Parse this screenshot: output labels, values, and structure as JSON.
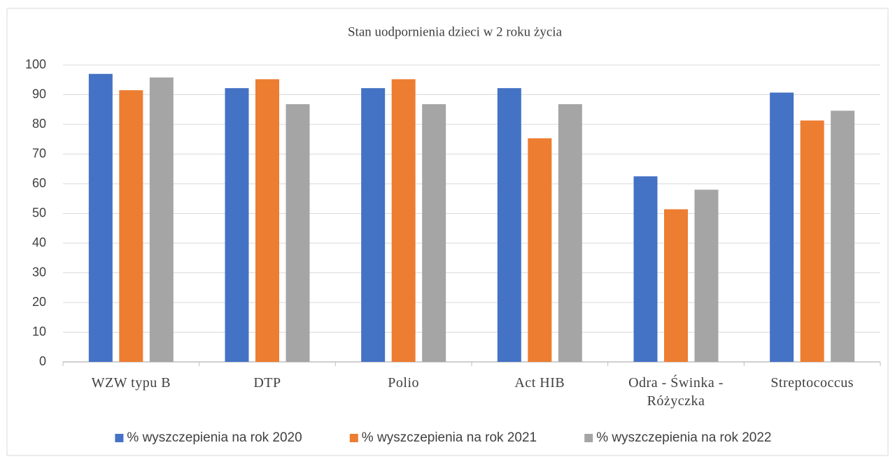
{
  "chart_data": {
    "type": "bar",
    "title": "Stan uodpornienia dzieci w 2 roku życia",
    "categories": [
      "WZW typu B",
      "DTP",
      "Polio",
      "Act HIB",
      "Odra - Świnka - Różyczka",
      "Streptococcus"
    ],
    "series": [
      {
        "name": "% wyszczepienia na rok 2020",
        "color": "#4472c4",
        "values": [
          97,
          92.2,
          92.2,
          92.2,
          62.5,
          90.7
        ]
      },
      {
        "name": "% wyszczepienia na rok 2021",
        "color": "#ed7d31",
        "values": [
          91.5,
          95.2,
          95.2,
          75.3,
          51.4,
          81.3
        ]
      },
      {
        "name": "% wyszczepienia na rok 2022",
        "color": "#a5a5a5",
        "values": [
          95.8,
          86.8,
          86.8,
          86.8,
          58,
          84.6
        ]
      }
    ],
    "ylim": [
      0,
      100
    ],
    "yticks": [
      0,
      10,
      20,
      30,
      40,
      50,
      60,
      70,
      80,
      90,
      100
    ],
    "grid": true,
    "legend": "bottom"
  }
}
